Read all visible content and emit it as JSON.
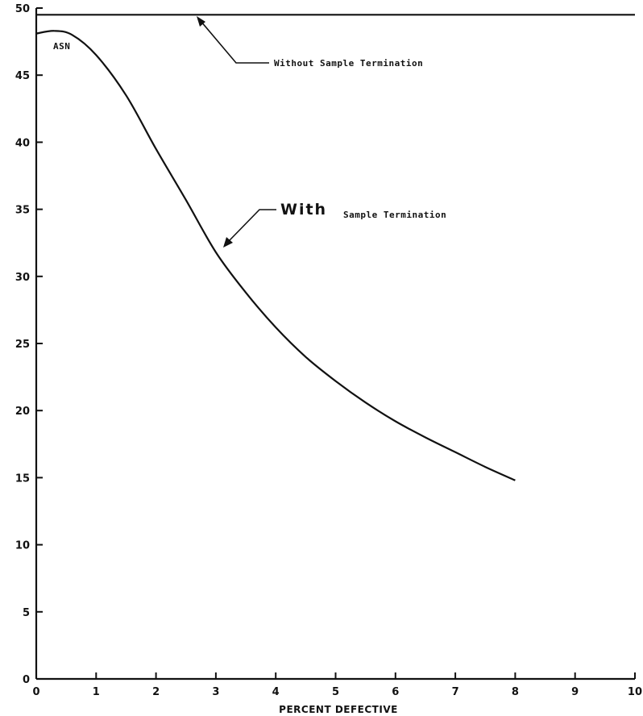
{
  "chart_data": {
    "type": "line",
    "xlabel": "PERCENT DEFECTIVE",
    "ylabel": "",
    "xlim": [
      0,
      10
    ],
    "ylim": [
      0,
      50
    ],
    "x_ticks": [
      0,
      1,
      2,
      3,
      4,
      5,
      6,
      7,
      8,
      9,
      10
    ],
    "x_tick_labels": [
      "0",
      "1",
      "2",
      "3",
      "4",
      "5",
      "6",
      "7",
      "8",
      "9",
      "10"
    ],
    "y_ticks": [
      0,
      5,
      10,
      15,
      20,
      25,
      30,
      35,
      40,
      45,
      50
    ],
    "y_tick_labels": [
      "0",
      "5",
      "10",
      "15",
      "20",
      "25",
      "30",
      "35",
      "40",
      "45",
      "50"
    ],
    "grid": false,
    "series": [
      {
        "name": "Without Sample Termination",
        "x": [
          0,
          10
        ],
        "y": [
          49.5,
          49.5
        ]
      },
      {
        "name": "With Sample Termination",
        "x": [
          0,
          0.3,
          0.6,
          1.0,
          1.5,
          2.0,
          2.5,
          3.0,
          3.5,
          4.0,
          4.5,
          5.0,
          5.5,
          6.0,
          6.5,
          7.0,
          7.5,
          8.0
        ],
        "y": [
          48.1,
          48.3,
          48.0,
          46.5,
          43.5,
          39.5,
          35.7,
          31.8,
          28.8,
          26.2,
          24.0,
          22.2,
          20.6,
          19.2,
          18.0,
          16.9,
          15.8,
          14.8
        ]
      }
    ],
    "annotations": {
      "asn": "ASN",
      "without_label": "Without Sample Termination",
      "with_word": "With",
      "with_rest": "Sample Termination"
    }
  }
}
